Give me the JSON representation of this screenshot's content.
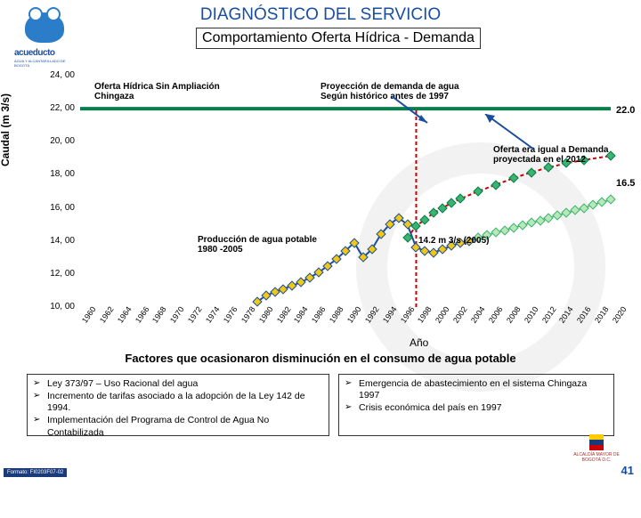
{
  "header": {
    "title": "DIAGNÓSTICO DEL SERVICIO",
    "subtitle": "Comportamiento Oferta Hídrica - Demanda"
  },
  "logo": {
    "text": "acueducto",
    "subtext": "AGUA Y ALCANTARILLADO DE BOGOTÁ"
  },
  "chart": {
    "type": "line",
    "y_label": "Caudal (m 3/s)",
    "y_ticks": [
      "24, 00",
      "22, 00",
      "20, 00",
      "18, 00",
      "16, 00",
      "14, 00",
      "12, 00",
      "10, 00"
    ],
    "ylim": [
      10,
      24
    ],
    "x_ticks": [
      "1960",
      "1962",
      "1964",
      "1966",
      "1968",
      "1970",
      "1972",
      "1974",
      "1976",
      "1978",
      "1980",
      "1982",
      "1984",
      "1986",
      "1988",
      "1990",
      "1992",
      "1994",
      "1996",
      "1998",
      "2000",
      "2002",
      "2004",
      "2006",
      "2008",
      "2010",
      "2012",
      "2014",
      "2016",
      "2018",
      "2020"
    ],
    "x_label": "Año",
    "xlim": [
      1960,
      2020
    ],
    "colors": {
      "background": "#ffffff",
      "supply": "#0a7d4d",
      "demand_proj": "#cc0000",
      "production": "#194d9e",
      "marker_yellow": "#f0c818",
      "marker_green": "#3cb371"
    },
    "series": {
      "supply": {
        "label_line1": "Oferta Hídrica Sin Ampliación",
        "label_line2": "Chingaza",
        "points": [
          [
            1960,
            22.0
          ],
          [
            1996,
            22.0
          ],
          [
            2020,
            22.0
          ]
        ],
        "value_label": "22.0"
      },
      "demand_proj": {
        "label_line1": "Proyección de demanda de agua",
        "label_line2": "Según histórico antes de 1997",
        "points": [
          [
            1997,
            14.2
          ],
          [
            1998,
            14.9
          ],
          [
            1999,
            15.3
          ],
          [
            2000,
            15.7
          ],
          [
            2001,
            16.0
          ],
          [
            2002,
            16.3
          ],
          [
            2003,
            16.55
          ],
          [
            2005,
            17.0
          ],
          [
            2007,
            17.4
          ],
          [
            2009,
            17.8
          ],
          [
            2011,
            18.15
          ],
          [
            2013,
            18.45
          ],
          [
            2015,
            18.7
          ],
          [
            2017,
            18.9
          ],
          [
            2020,
            19.15
          ]
        ]
      },
      "production": {
        "label_line1": "Producción de agua potable",
        "label_line2": "1980 -2005",
        "pt_label": "14.2 m 3/s (2005)",
        "points": [
          [
            1980,
            10.3
          ],
          [
            1981,
            10.7
          ],
          [
            1982,
            10.9
          ],
          [
            1983,
            11.1
          ],
          [
            1984,
            11.3
          ],
          [
            1985,
            11.5
          ],
          [
            1986,
            11.8
          ],
          [
            1987,
            12.1
          ],
          [
            1988,
            12.5
          ],
          [
            1989,
            12.9
          ],
          [
            1990,
            13.4
          ],
          [
            1991,
            13.9
          ],
          [
            1992,
            13.0
          ],
          [
            1993,
            13.5
          ],
          [
            1994,
            14.4
          ],
          [
            1995,
            15.0
          ],
          [
            1996,
            15.4
          ],
          [
            1997,
            15.0
          ],
          [
            1998,
            13.6
          ],
          [
            1999,
            13.4
          ],
          [
            2000,
            13.3
          ],
          [
            2001,
            13.5
          ],
          [
            2002,
            13.7
          ],
          [
            2003,
            13.9
          ],
          [
            2004,
            14.0
          ],
          [
            2005,
            14.2
          ]
        ]
      },
      "future": {
        "value_label": "16.5",
        "points": [
          [
            2005,
            14.2
          ],
          [
            2006,
            14.35
          ],
          [
            2007,
            14.5
          ],
          [
            2008,
            14.65
          ],
          [
            2009,
            14.8
          ],
          [
            2010,
            14.95
          ],
          [
            2011,
            15.1
          ],
          [
            2012,
            15.25
          ],
          [
            2013,
            15.4
          ],
          [
            2014,
            15.55
          ],
          [
            2015,
            15.7
          ],
          [
            2016,
            15.85
          ],
          [
            2017,
            16.0
          ],
          [
            2018,
            16.2
          ],
          [
            2019,
            16.35
          ],
          [
            2020,
            16.5
          ]
        ]
      }
    },
    "annotations": {
      "supply_offer": "Oferta era igual a Demanda proyectada en el 2012"
    }
  },
  "factors": {
    "header": "Factores que ocasionaron disminución en el consumo de agua potable",
    "bullet": "➢",
    "left": [
      "Ley 373/97 – Uso Racional del agua",
      "Incremento de tarifas asociado a la adopción de la Ley 142 de 1994.",
      "Implementación del Programa de Control de Agua No Contabilizada"
    ],
    "right": [
      "Emergencia de abastecimiento en el sistema Chingaza 1997",
      "Crisis económica del país en 1997"
    ]
  },
  "footer": {
    "format_code": "Formato: FI0203F07-02",
    "page": "41",
    "alcaldia": "ALCALDÍA MAYOR DE BOGOTÁ D.C."
  }
}
